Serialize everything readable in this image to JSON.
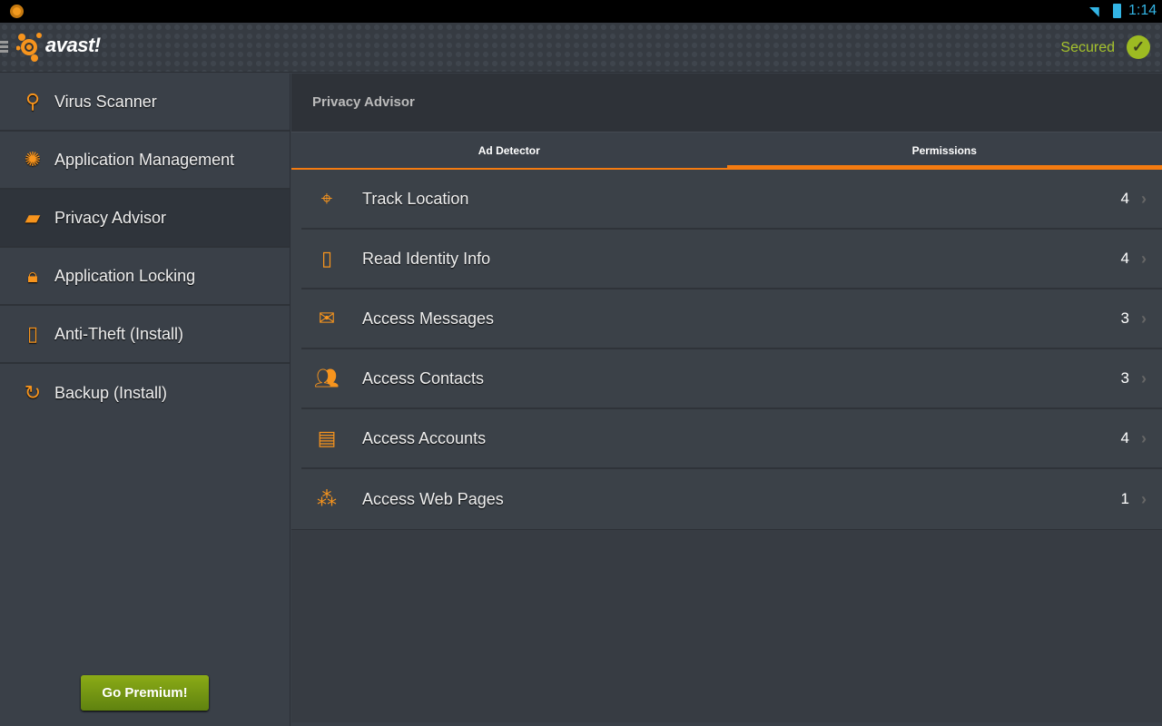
{
  "status_bar": {
    "time": "1:14"
  },
  "header": {
    "logo": "avast!",
    "status": "Secured",
    "accent": "#f7941d"
  },
  "sidebar": {
    "items": [
      {
        "label": "Virus Scanner",
        "icon": "virus-scanner-icon"
      },
      {
        "label": "Application Management",
        "icon": "app-management-icon"
      },
      {
        "label": "Privacy Advisor",
        "icon": "privacy-advisor-icon",
        "active": true
      },
      {
        "label": "Application Locking",
        "icon": "lock-icon"
      },
      {
        "label": "Anti-Theft (Install)",
        "icon": "anti-theft-icon"
      },
      {
        "label": "Backup (Install)",
        "icon": "backup-icon"
      }
    ],
    "premium": "Go Premium!"
  },
  "main": {
    "title": "Privacy Advisor",
    "tabs": [
      {
        "label": "Ad Detector"
      },
      {
        "label": "Permissions",
        "active": true
      }
    ],
    "permissions": [
      {
        "label": "Track Location",
        "count": "4",
        "icon": "crosshair-icon"
      },
      {
        "label": "Read Identity Info",
        "count": "4",
        "icon": "phone-icon"
      },
      {
        "label": "Access Messages",
        "count": "3",
        "icon": "envelope-icon"
      },
      {
        "label": "Access Contacts",
        "count": "3",
        "icon": "contacts-icon"
      },
      {
        "label": "Access Accounts",
        "count": "4",
        "icon": "id-card-icon"
      },
      {
        "label": "Access Web Pages",
        "count": "1",
        "icon": "network-icon"
      }
    ]
  }
}
